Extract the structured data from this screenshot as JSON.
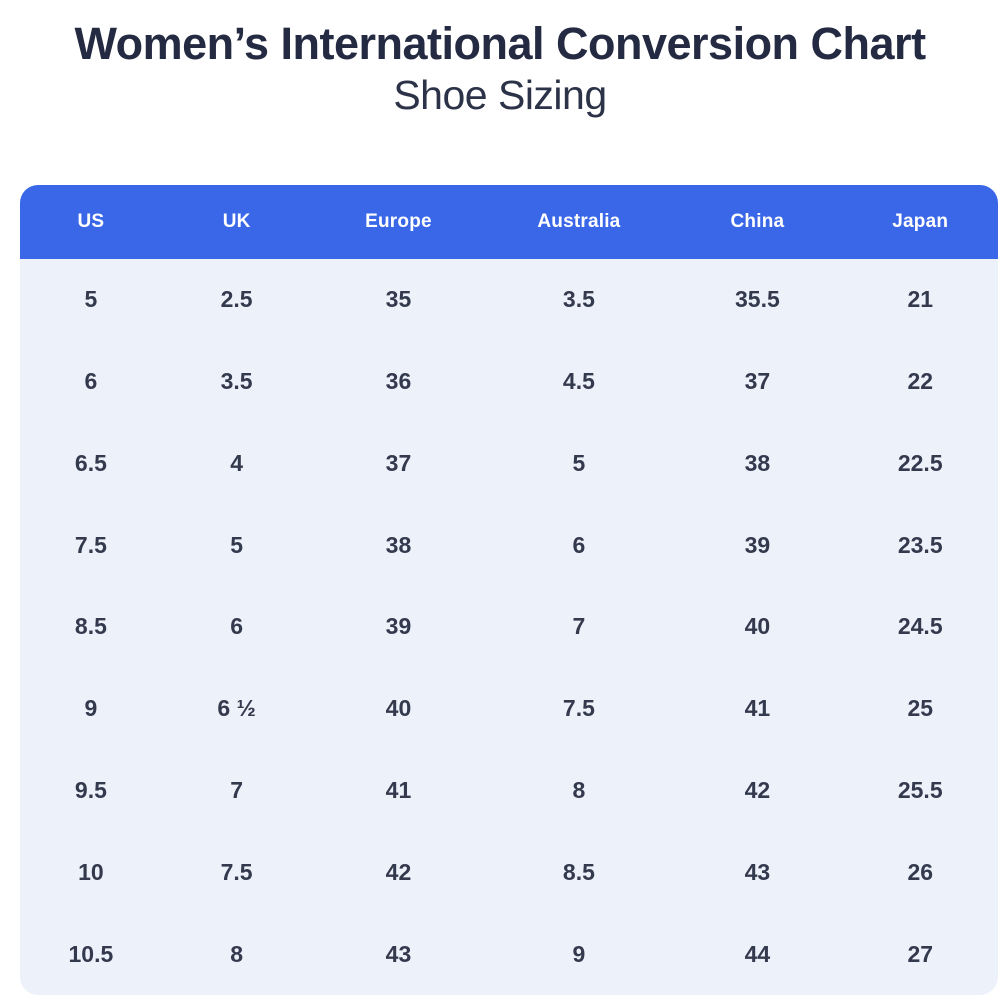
{
  "header": {
    "title": "Women’s International Conversion Chart",
    "subtitle": "Shoe Sizing"
  },
  "colors": {
    "header_bg": "#3A67E8",
    "header_text": "#FFFFFF",
    "table_body_bg": "#EDF2FA",
    "title_text": "#242A41",
    "cell_text": "#343A4E",
    "page_bg": "#FFFFFF"
  },
  "chart_data": {
    "type": "table",
    "title": "Women’s International Conversion Chart — Shoe Sizing",
    "columns": [
      "US",
      "UK",
      "Europe",
      "Australia",
      "China",
      "Japan"
    ],
    "rows": [
      [
        "5",
        "2.5",
        "35",
        "3.5",
        "35.5",
        "21"
      ],
      [
        "6",
        "3.5",
        "36",
        "4.5",
        "37",
        "22"
      ],
      [
        "6.5",
        "4",
        "37",
        "5",
        "38",
        "22.5"
      ],
      [
        "7.5",
        "5",
        "38",
        "6",
        "39",
        "23.5"
      ],
      [
        "8.5",
        "6",
        "39",
        "7",
        "40",
        "24.5"
      ],
      [
        "9",
        "6 ½",
        "40",
        "7.5",
        "41",
        "25"
      ],
      [
        "9.5",
        "7",
        "41",
        "8",
        "42",
        "25.5"
      ],
      [
        "10",
        "7.5",
        "42",
        "8.5",
        "43",
        "26"
      ],
      [
        "10.5",
        "8",
        "43",
        "9",
        "44",
        "27"
      ]
    ]
  }
}
